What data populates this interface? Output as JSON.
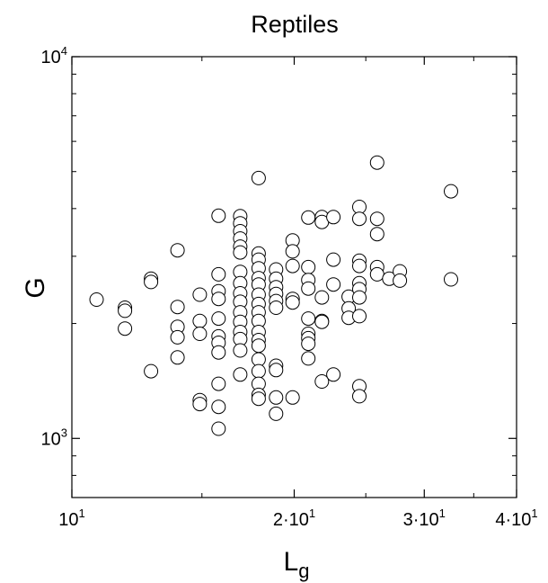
{
  "chart_data": {
    "type": "scatter",
    "title": "Reptiles",
    "xlabel": "L",
    "xlabel_sub": "g",
    "ylabel": "G",
    "x_scale": "log",
    "y_scale": "log",
    "xlim": [
      10,
      40
    ],
    "ylim": [
      700,
      10000
    ],
    "x_ticks": [
      {
        "value": 10,
        "base": "10",
        "exp": "1"
      },
      {
        "value": 20,
        "base": "2·10",
        "exp": "1"
      },
      {
        "value": 30,
        "base": "3·10",
        "exp": "1"
      },
      {
        "value": 40,
        "base": "4·10",
        "exp": "1"
      }
    ],
    "y_ticks": [
      {
        "value": 1000,
        "base": "10",
        "exp": "3"
      },
      {
        "value": 10000,
        "base": "10",
        "exp": "4"
      }
    ],
    "grid": false,
    "legend": "none",
    "marker": {
      "shape": "circle",
      "fill": "#ffffff",
      "stroke": "#000000"
    },
    "points": [
      [
        10.8,
        2310
      ],
      [
        11.8,
        2200
      ],
      [
        11.8,
        2160
      ],
      [
        11.8,
        1940
      ],
      [
        12.8,
        2620
      ],
      [
        12.8,
        2570
      ],
      [
        12.8,
        1500
      ],
      [
        13.9,
        3110
      ],
      [
        13.9,
        2210
      ],
      [
        13.9,
        1960
      ],
      [
        13.9,
        1840
      ],
      [
        13.9,
        1630
      ],
      [
        14.9,
        2380
      ],
      [
        14.9,
        2030
      ],
      [
        14.9,
        1880
      ],
      [
        14.9,
        1260
      ],
      [
        14.9,
        1230
      ],
      [
        15.8,
        3830
      ],
      [
        15.8,
        2690
      ],
      [
        15.8,
        2430
      ],
      [
        15.8,
        2320
      ],
      [
        15.8,
        2060
      ],
      [
        15.8,
        1850
      ],
      [
        15.8,
        1780
      ],
      [
        15.8,
        1680
      ],
      [
        15.8,
        1390
      ],
      [
        15.8,
        1210
      ],
      [
        15.8,
        1060
      ],
      [
        16.9,
        3820
      ],
      [
        16.9,
        3660
      ],
      [
        16.9,
        3490
      ],
      [
        16.9,
        3340
      ],
      [
        16.9,
        3180
      ],
      [
        16.9,
        3070
      ],
      [
        16.9,
        2730
      ],
      [
        16.9,
        2550
      ],
      [
        16.9,
        2400
      ],
      [
        16.9,
        2280
      ],
      [
        16.9,
        2140
      ],
      [
        16.9,
        2020
      ],
      [
        16.9,
        1900
      ],
      [
        16.9,
        1820
      ],
      [
        16.9,
        1700
      ],
      [
        16.9,
        1470
      ],
      [
        17.9,
        4810
      ],
      [
        17.9,
        3050
      ],
      [
        17.9,
        2940
      ],
      [
        17.9,
        2790
      ],
      [
        17.9,
        2630
      ],
      [
        17.9,
        2530
      ],
      [
        17.9,
        2380
      ],
      [
        17.9,
        2250
      ],
      [
        17.9,
        2140
      ],
      [
        17.9,
        2030
      ],
      [
        17.9,
        1900
      ],
      [
        17.9,
        1810
      ],
      [
        17.9,
        1750
      ],
      [
        17.9,
        1610
      ],
      [
        17.9,
        1500
      ],
      [
        17.9,
        1390
      ],
      [
        17.9,
        1300
      ],
      [
        17.9,
        1270
      ],
      [
        18.9,
        2770
      ],
      [
        18.9,
        2620
      ],
      [
        18.9,
        2490
      ],
      [
        18.9,
        2390
      ],
      [
        18.9,
        2290
      ],
      [
        18.9,
        2200
      ],
      [
        18.9,
        1550
      ],
      [
        18.9,
        1510
      ],
      [
        18.9,
        1280
      ],
      [
        18.9,
        1160
      ],
      [
        19.9,
        3300
      ],
      [
        19.9,
        3090
      ],
      [
        19.9,
        2830
      ],
      [
        19.9,
        2320
      ],
      [
        19.9,
        2270
      ],
      [
        19.9,
        1280
      ],
      [
        20.9,
        3790
      ],
      [
        20.9,
        2810
      ],
      [
        20.9,
        2600
      ],
      [
        20.9,
        2470
      ],
      [
        20.9,
        2060
      ],
      [
        20.9,
        1880
      ],
      [
        20.9,
        1830
      ],
      [
        20.9,
        1770
      ],
      [
        20.9,
        1620
      ],
      [
        21.8,
        3800
      ],
      [
        21.8,
        3690
      ],
      [
        21.8,
        2340
      ],
      [
        21.8,
        2030
      ],
      [
        21.8,
        2020
      ],
      [
        21.8,
        1410
      ],
      [
        22.6,
        3800
      ],
      [
        22.6,
        2940
      ],
      [
        22.6,
        2530
      ],
      [
        22.6,
        1470
      ],
      [
        23.7,
        2350
      ],
      [
        23.7,
        2190
      ],
      [
        23.7,
        2070
      ],
      [
        24.5,
        4040
      ],
      [
        24.5,
        3760
      ],
      [
        24.5,
        2920
      ],
      [
        24.5,
        2830
      ],
      [
        24.5,
        2550
      ],
      [
        24.5,
        2460
      ],
      [
        24.5,
        2340
      ],
      [
        24.5,
        2090
      ],
      [
        24.5,
        1370
      ],
      [
        24.5,
        1290
      ],
      [
        25.9,
        5280
      ],
      [
        25.9,
        3760
      ],
      [
        25.9,
        3430
      ],
      [
        25.9,
        2810
      ],
      [
        25.9,
        2690
      ],
      [
        26.9,
        2620
      ],
      [
        27.8,
        2740
      ],
      [
        27.8,
        2590
      ],
      [
        32.6,
        4440
      ],
      [
        32.6,
        2610
      ]
    ]
  }
}
